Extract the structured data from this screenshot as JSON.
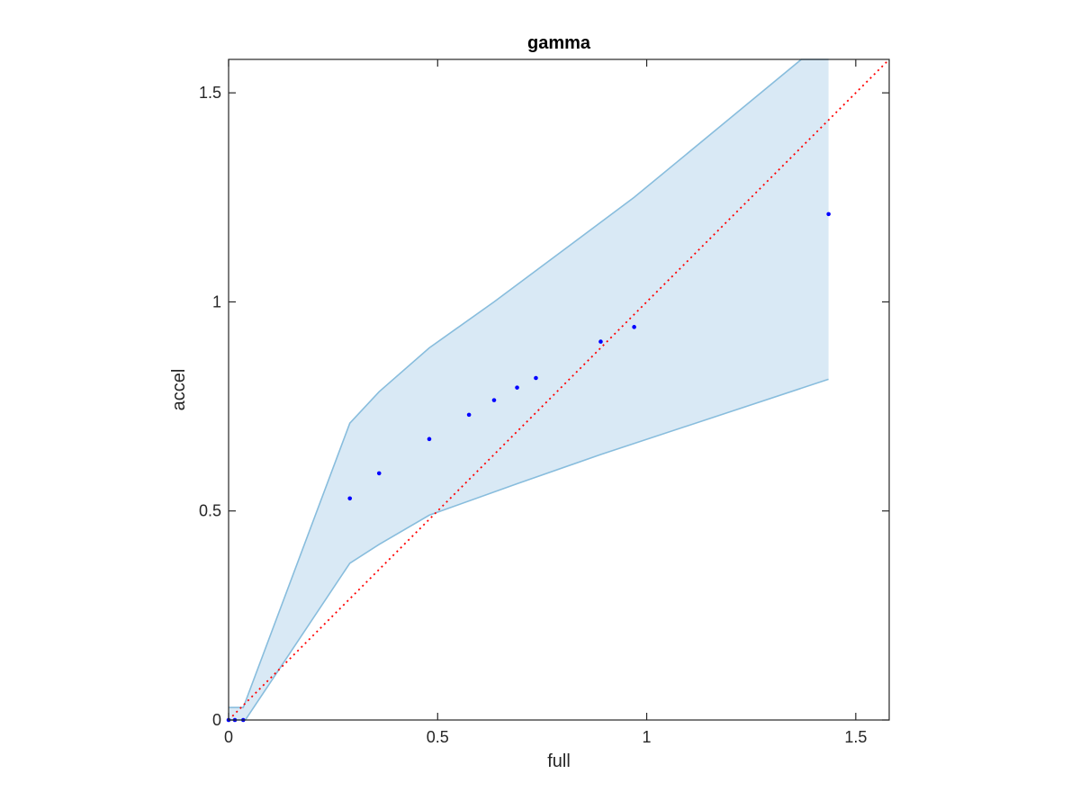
{
  "chart_data": {
    "type": "scatter",
    "title": "gamma",
    "xlabel": "full",
    "ylabel": "accel",
    "xlim": [
      0,
      1.58
    ],
    "ylim": [
      0,
      1.58
    ],
    "xticks": [
      0,
      0.5,
      1,
      1.5
    ],
    "yticks": [
      0,
      0.5,
      1,
      1.5
    ],
    "xtick_labels": [
      "0",
      "0.5",
      "1",
      "1.5"
    ],
    "ytick_labels": [
      "0",
      "0.5",
      "1",
      "1.5"
    ],
    "grid": false,
    "points": [
      {
        "x": 0.0,
        "y": 0.0
      },
      {
        "x": 0.015,
        "y": 0.0
      },
      {
        "x": 0.035,
        "y": 0.0
      },
      {
        "x": 0.29,
        "y": 0.53
      },
      {
        "x": 0.36,
        "y": 0.59
      },
      {
        "x": 0.48,
        "y": 0.672
      },
      {
        "x": 0.575,
        "y": 0.73
      },
      {
        "x": 0.635,
        "y": 0.765
      },
      {
        "x": 0.69,
        "y": 0.795
      },
      {
        "x": 0.735,
        "y": 0.818
      },
      {
        "x": 0.89,
        "y": 0.905
      },
      {
        "x": 0.97,
        "y": 0.94
      },
      {
        "x": 1.435,
        "y": 1.21
      }
    ],
    "band_upper": [
      {
        "x": 0.0,
        "y": 0.03
      },
      {
        "x": 0.035,
        "y": 0.03
      },
      {
        "x": 0.29,
        "y": 0.71
      },
      {
        "x": 0.36,
        "y": 0.785
      },
      {
        "x": 0.48,
        "y": 0.89
      },
      {
        "x": 0.635,
        "y": 1.0
      },
      {
        "x": 0.97,
        "y": 1.25
      },
      {
        "x": 1.37,
        "y": 1.58
      },
      {
        "x": 1.435,
        "y": 1.58
      }
    ],
    "band_lower": [
      {
        "x": 0.0,
        "y": 0.0
      },
      {
        "x": 0.04,
        "y": 0.0
      },
      {
        "x": 0.29,
        "y": 0.375
      },
      {
        "x": 0.36,
        "y": 0.42
      },
      {
        "x": 0.48,
        "y": 0.49
      },
      {
        "x": 0.69,
        "y": 0.565
      },
      {
        "x": 0.89,
        "y": 0.635
      },
      {
        "x": 1.435,
        "y": 0.815
      }
    ],
    "reference_line": {
      "x": [
        0,
        1.58
      ],
      "y": [
        0,
        1.58
      ]
    },
    "colors": {
      "points": "#0000ff",
      "band_fill": "#d9e9f5",
      "band_edge": "#88bddd",
      "reference_line": "#ff0000",
      "axes": "#262626"
    }
  }
}
